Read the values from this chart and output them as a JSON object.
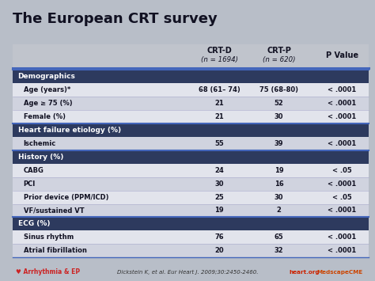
{
  "title": "The European CRT survey",
  "sections": [
    {
      "label": "Demographics",
      "is_header": true
    },
    {
      "label": "Age (years)*",
      "crtd": "68 (61– 74)",
      "crtp": "75 (68-80)",
      "p": "< .0001"
    },
    {
      "label": "Age ≥ 75 (%)",
      "crtd": "21",
      "crtp": "52",
      "p": "< .0001"
    },
    {
      "label": "Female (%)",
      "crtd": "21",
      "crtp": "30",
      "p": "< .0001"
    },
    {
      "label": "Heart failure etiology (%)",
      "is_header": true
    },
    {
      "label": "Ischemic",
      "crtd": "55",
      "crtp": "39",
      "p": "< .0001"
    },
    {
      "label": "History (%)",
      "is_header": true
    },
    {
      "label": "CABG",
      "crtd": "24",
      "crtp": "19",
      "p": "< .05"
    },
    {
      "label": "PCI",
      "crtd": "30",
      "crtp": "16",
      "p": "< .0001"
    },
    {
      "label": "Prior device (PPM/ICD)",
      "crtd": "25",
      "crtp": "30",
      "p": "< .05"
    },
    {
      "label": "VF/sustained VT",
      "crtd": "19",
      "crtp": "2",
      "p": "< .0001"
    },
    {
      "label": "ECG (%)",
      "is_header": true
    },
    {
      "label": "Sinus rhythm",
      "crtd": "76",
      "crtp": "65",
      "p": "< .0001"
    },
    {
      "label": "Atrial fibrillation",
      "crtd": "20",
      "crtp": "32",
      "p": "< .0001"
    }
  ],
  "citation": "Dickstein K, et al. Eur Heart J. 2009;30:2450-2460.",
  "col_label_crtd": "CRT-D",
  "col_sub_crtd": "(n = 1694)",
  "col_label_crtp": "CRT-P",
  "col_sub_crtp": "(n = 620)",
  "col_label_p": "P Value",
  "bg_color": "#b8bec8",
  "header_bg": "#c0c4cc",
  "section_bg": "#2d3a5e",
  "row_color_a": "#e2e4ec",
  "row_color_b": "#d0d3df",
  "blue_line": "#4466bb",
  "title_color": "#111122",
  "section_text": "#ffffff",
  "data_text": "#111122",
  "logo_left_color": "#cc2222",
  "logo_right_color": "#cc4400"
}
